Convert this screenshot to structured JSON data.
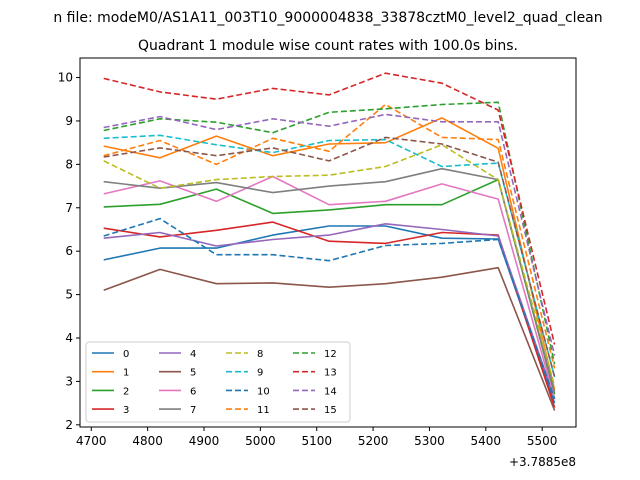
{
  "chart_data": {
    "type": "line",
    "suptitle": "n file: modeM0/AS1A11_003T10_9000004838_33878cztM0_level2_quad_clean",
    "title": "Quadrant 1 module wise count rates with 100.0s bins.",
    "xlabel": "",
    "ylabel": "",
    "x_offset_label": "+3.7885e8",
    "xlim": [
      4680,
      5560
    ],
    "ylim": [
      1.95,
      10.45
    ],
    "xticks": [
      4700,
      4800,
      4900,
      5000,
      5100,
      5200,
      5300,
      5400,
      5500
    ],
    "yticks": [
      2,
      3,
      4,
      5,
      6,
      7,
      8,
      9,
      10
    ],
    "x": [
      4722,
      4822,
      4922,
      5022,
      5122,
      5222,
      5322,
      5422,
      5522
    ],
    "legend_position": "lower-left",
    "series": [
      {
        "name": "0",
        "color": "#1f77b4",
        "dash": "solid",
        "values": [
          5.8,
          6.07,
          6.07,
          6.37,
          6.58,
          6.58,
          6.3,
          6.28,
          2.5
        ]
      },
      {
        "name": "1",
        "color": "#ff7f0e",
        "dash": "solid",
        "values": [
          8.42,
          8.15,
          8.65,
          8.2,
          8.47,
          8.5,
          9.07,
          8.37,
          2.8
        ]
      },
      {
        "name": "2",
        "color": "#2ca02c",
        "dash": "solid",
        "values": [
          7.02,
          7.08,
          7.43,
          6.87,
          6.95,
          7.07,
          7.07,
          7.65,
          2.7
        ]
      },
      {
        "name": "3",
        "color": "#d62728",
        "dash": "solid",
        "values": [
          6.53,
          6.33,
          6.48,
          6.67,
          6.23,
          6.18,
          6.43,
          6.37,
          2.4
        ]
      },
      {
        "name": "4",
        "color": "#9467bd",
        "dash": "solid",
        "values": [
          6.3,
          6.43,
          6.12,
          6.27,
          6.37,
          6.63,
          6.5,
          6.35,
          2.6
        ]
      },
      {
        "name": "5",
        "color": "#8c564b",
        "dash": "solid",
        "values": [
          5.1,
          5.58,
          5.25,
          5.27,
          5.17,
          5.25,
          5.4,
          5.62,
          2.33
        ]
      },
      {
        "name": "6",
        "color": "#e377c2",
        "dash": "solid",
        "values": [
          7.32,
          7.62,
          7.15,
          7.72,
          7.07,
          7.15,
          7.55,
          7.2,
          2.6
        ]
      },
      {
        "name": "7",
        "color": "#7f7f7f",
        "dash": "solid",
        "values": [
          7.6,
          7.45,
          7.58,
          7.35,
          7.5,
          7.6,
          7.9,
          7.65,
          2.75
        ]
      },
      {
        "name": "8",
        "color": "#bcbd22",
        "dash": "dashed",
        "values": [
          8.08,
          7.45,
          7.65,
          7.72,
          7.75,
          7.95,
          8.45,
          7.65,
          2.9
        ]
      },
      {
        "name": "9",
        "color": "#17becf",
        "dash": "dashed",
        "values": [
          8.6,
          8.67,
          8.45,
          8.27,
          8.55,
          8.57,
          7.95,
          8.03,
          3.1
        ]
      },
      {
        "name": "10",
        "color": "#1f77b4",
        "dash": "dashed",
        "values": [
          6.35,
          6.75,
          5.92,
          5.92,
          5.78,
          6.13,
          6.18,
          6.27,
          2.6
        ]
      },
      {
        "name": "11",
        "color": "#ff7f0e",
        "dash": "dashed",
        "values": [
          8.2,
          8.55,
          8.0,
          8.6,
          8.3,
          9.38,
          8.62,
          8.57,
          3.3
        ]
      },
      {
        "name": "12",
        "color": "#2ca02c",
        "dash": "dashed",
        "values": [
          8.78,
          9.05,
          8.97,
          8.73,
          9.2,
          9.28,
          9.38,
          9.43,
          3.4
        ]
      },
      {
        "name": "13",
        "color": "#d62728",
        "dash": "dashed",
        "values": [
          9.98,
          9.67,
          9.5,
          9.75,
          9.6,
          10.1,
          9.87,
          9.25,
          3.85
        ]
      },
      {
        "name": "14",
        "color": "#9467bd",
        "dash": "dashed",
        "values": [
          8.85,
          9.1,
          8.8,
          9.05,
          8.88,
          9.15,
          8.98,
          8.98,
          3.6
        ]
      },
      {
        "name": "15",
        "color": "#8c564b",
        "dash": "dashed",
        "values": [
          8.17,
          8.38,
          8.2,
          8.38,
          8.08,
          8.62,
          8.47,
          8.05,
          3.1
        ]
      }
    ]
  }
}
